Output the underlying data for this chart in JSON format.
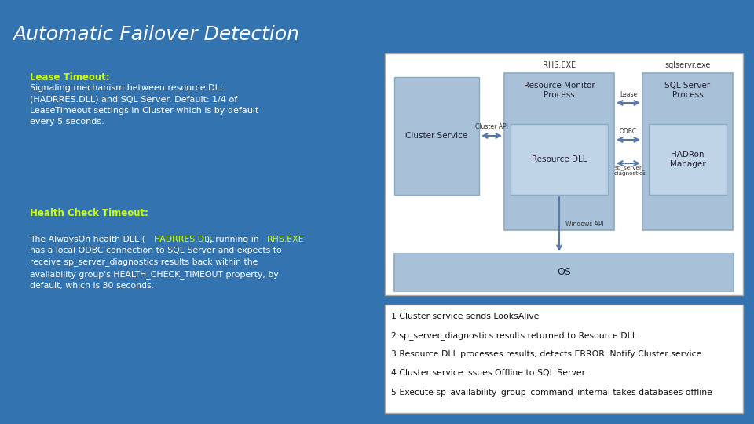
{
  "title": "Automatic Failover Detection",
  "title_color": "#ffffff",
  "bg_color": "#3373b0",
  "box_fill": "#A8C0D8",
  "box_edge": "#8AAAC0",
  "inner_box_fill": "#C0D4E8",
  "lime": "#CCFF00",
  "white": "#ffffff",
  "dark": "#222233",
  "lease_label": "Lease Timeout:",
  "lease_body": "Signaling mechanism between resource DLL\n(HADRRES.DLL) and SQL Server. Default: 1/4 of\nLeaseTimeout settings in Cluster which is by default\nevery 5 seconds.",
  "health_label": "Health Check Timeout:",
  "health_line1_a": "The AlwaysOn health DLL (",
  "health_line1_b": "HADRRES.DLL",
  "health_line1_c": "), running in ",
  "health_line1_d": "RHS.EXE",
  "health_rest": "has a local ODBC connection to SQL Server and expects to\nreceive sp_server_diagnostics results back within the\navailability group's HEALTH_CHECK_TIMEOUT property, by\ndefault, which is 30 seconds.",
  "rhs_label": "RHS.EXE",
  "sql_label": "sqlservr.exe",
  "cs_label": "Cluster Service",
  "rm_label": "Resource Monitor\nProcess",
  "rdll_label": "Resource DLL",
  "sqlp_label": "SQL Server\nProcess",
  "hadr_label": "HADRon\nManager",
  "os_label": "OS",
  "cluster_api": "Cluster API",
  "lease_arrow": "Lease",
  "odbc_arrow": "ODBC",
  "spd_arrow": "sp_server_\ndiagnostics",
  "winapi": "Windows API",
  "steps": [
    "1 Cluster service sends LooksAlive",
    "2 sp_server_diagnostics results returned to Resource DLL",
    "3 Resource DLL processes results, detects ERROR. Notify Cluster service.",
    "4 Cluster service issues Offline to SQL Server",
    "5 Execute sp_availability_group_command_internal takes databases offline"
  ]
}
